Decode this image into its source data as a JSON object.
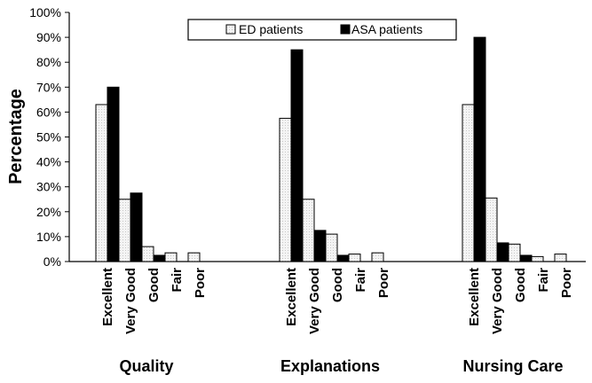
{
  "chart_data": {
    "type": "bar",
    "ylabel": "Percentage",
    "ylim": [
      0,
      100
    ],
    "y_ticks": [
      "0%",
      "10%",
      "20%",
      "30%",
      "40%",
      "50%",
      "60%",
      "70%",
      "80%",
      "90%",
      "100%"
    ],
    "categories": [
      "Excellent",
      "Very Good",
      "Good",
      "Fair",
      "Poor"
    ],
    "groups": [
      {
        "name": "Quality",
        "series": [
          {
            "name": "ED patients",
            "values": [
              63,
              25,
              6,
              3.5,
              3.5
            ]
          },
          {
            "name": "ASA patients",
            "values": [
              70,
              27.5,
              2.5,
              0,
              0
            ]
          }
        ]
      },
      {
        "name": "Explanations",
        "series": [
          {
            "name": "ED patients",
            "values": [
              57.5,
              25,
              11,
              3,
              3.5
            ]
          },
          {
            "name": "ASA patients",
            "values": [
              85,
              12.5,
              2.5,
              0,
              0
            ]
          }
        ]
      },
      {
        "name": "Nursing Care",
        "series": [
          {
            "name": "ED patients",
            "values": [
              63,
              25.5,
              7,
              2,
              3
            ]
          },
          {
            "name": "ASA patients",
            "values": [
              90,
              7.5,
              2.5,
              0,
              0
            ]
          }
        ]
      }
    ],
    "legend": {
      "position": "top-center",
      "entries": [
        {
          "name": "ED patients",
          "color": "#f2f2f2"
        },
        {
          "name": "ASA patients",
          "color": "#000000"
        }
      ]
    },
    "grid": false
  }
}
